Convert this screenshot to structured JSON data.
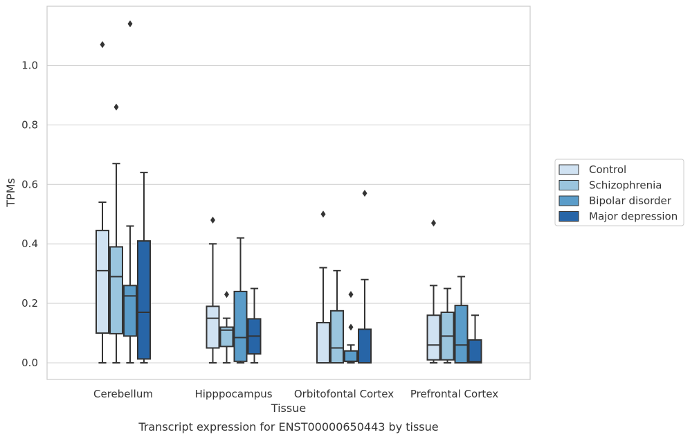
{
  "chart_data": {
    "type": "boxplot",
    "caption": "Transcript expression for ENST00000650443 by tissue",
    "xlabel": "Tissue",
    "ylabel": "TPMs",
    "ylim": [
      -0.055,
      1.2
    ],
    "yticks": [
      0.0,
      0.2,
      0.4,
      0.6,
      0.8,
      1.0
    ],
    "ytick_labels": [
      "0.0",
      "0.2",
      "0.4",
      "0.6",
      "0.8",
      "1.0"
    ],
    "grid": "horizontal",
    "legend_position": "right",
    "categories": [
      "Cerebellum",
      "Hipppocampus",
      "Orbitofontal Cortex",
      "Prefrontal Cortex"
    ],
    "series": [
      {
        "name": "Control",
        "color": "#d0e2f2",
        "boxes": [
          {
            "whislo": 0.0,
            "q1": 0.1,
            "med": 0.31,
            "q3": 0.445,
            "whishi": 0.54,
            "fliers": [
              1.07
            ]
          },
          {
            "whislo": 0.0,
            "q1": 0.05,
            "med": 0.15,
            "q3": 0.19,
            "whishi": 0.4,
            "fliers": [
              0.48
            ]
          },
          {
            "whislo": 0.0,
            "q1": 0.0,
            "med": 0.0,
            "q3": 0.135,
            "whishi": 0.32,
            "fliers": [
              0.5
            ]
          },
          {
            "whislo": 0.0,
            "q1": 0.01,
            "med": 0.06,
            "q3": 0.16,
            "whishi": 0.26,
            "fliers": [
              0.47
            ]
          }
        ]
      },
      {
        "name": "Schizophrenia",
        "color": "#9ac5de",
        "boxes": [
          {
            "whislo": 0.0,
            "q1": 0.098,
            "med": 0.29,
            "q3": 0.39,
            "whishi": 0.67,
            "fliers": [
              0.86
            ]
          },
          {
            "whislo": 0.0,
            "q1": 0.055,
            "med": 0.11,
            "q3": 0.12,
            "whishi": 0.15,
            "fliers": [
              0.23
            ]
          },
          {
            "whislo": 0.0,
            "q1": 0.0,
            "med": 0.05,
            "q3": 0.175,
            "whishi": 0.31,
            "fliers": []
          },
          {
            "whislo": 0.0,
            "q1": 0.01,
            "med": 0.09,
            "q3": 0.17,
            "whishi": 0.25,
            "fliers": []
          }
        ]
      },
      {
        "name": "Bipolar disorder",
        "color": "#5a9cc9",
        "boxes": [
          {
            "whislo": 0.0,
            "q1": 0.09,
            "med": 0.225,
            "q3": 0.26,
            "whishi": 0.46,
            "fliers": [
              1.14
            ]
          },
          {
            "whislo": 0.0,
            "q1": 0.005,
            "med": 0.085,
            "q3": 0.24,
            "whishi": 0.42,
            "fliers": []
          },
          {
            "whislo": 0.0,
            "q1": 0.005,
            "med": 0.005,
            "q3": 0.04,
            "whishi": 0.06,
            "fliers": [
              0.12,
              0.23
            ]
          },
          {
            "whislo": 0.0,
            "q1": 0.0,
            "med": 0.06,
            "q3": 0.193,
            "whishi": 0.29,
            "fliers": []
          }
        ]
      },
      {
        "name": "Major depression",
        "color": "#2765a7",
        "boxes": [
          {
            "whislo": 0.0,
            "q1": 0.013,
            "med": 0.17,
            "q3": 0.41,
            "whishi": 0.64,
            "fliers": []
          },
          {
            "whislo": 0.0,
            "q1": 0.03,
            "med": 0.09,
            "q3": 0.148,
            "whishi": 0.25,
            "fliers": []
          },
          {
            "whislo": 0.0,
            "q1": 0.0,
            "med": 0.0,
            "q3": 0.113,
            "whishi": 0.28,
            "fliers": [
              0.57
            ]
          },
          {
            "whislo": 0.0,
            "q1": 0.0,
            "med": 0.004,
            "q3": 0.077,
            "whishi": 0.16,
            "fliers": []
          }
        ]
      }
    ]
  }
}
